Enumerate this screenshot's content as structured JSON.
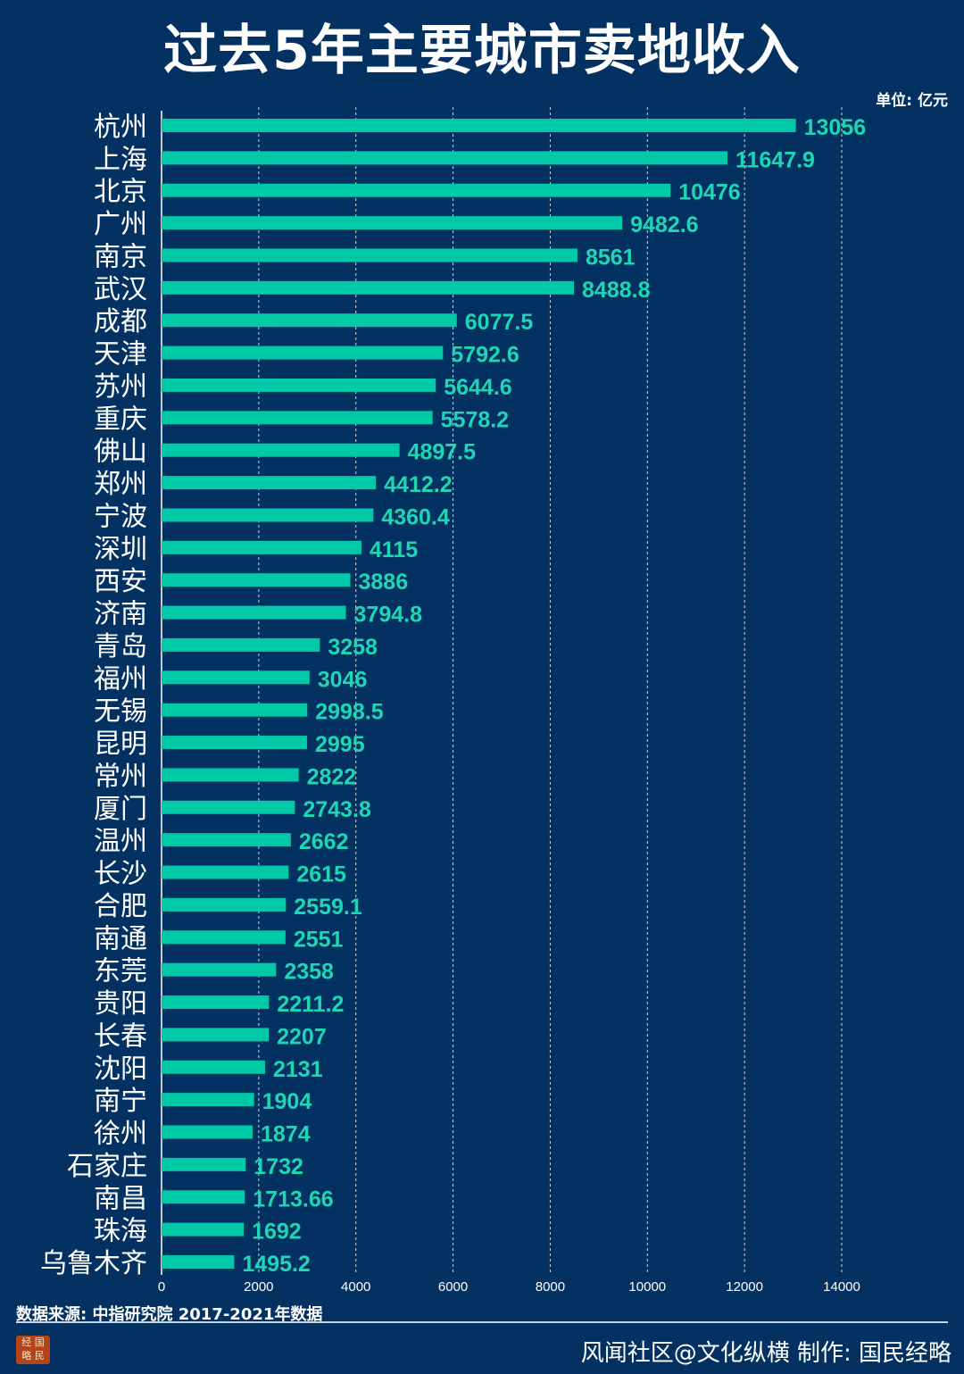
{
  "title": "过去5年主要城市卖地收入",
  "unit": "单位: 亿元",
  "source": "数据来源: 中指研究院  2017-2021年数据",
  "footer": "风闻社区@文化纵横 制作: 国民经略",
  "logo_text": "经国略民",
  "colors": {
    "background": "#033262",
    "bar": "#00c9a7",
    "label": "#1fd6b4"
  },
  "chart_data": {
    "type": "bar",
    "orientation": "horizontal",
    "title": "过去5年主要城市卖地收入",
    "xlabel": "",
    "ylabel": "",
    "unit": "亿元",
    "xlim": [
      0,
      14000
    ],
    "xticks": [
      0,
      2000,
      4000,
      6000,
      8000,
      10000,
      12000,
      14000
    ],
    "grid": "vertical dashed",
    "categories": [
      "杭州",
      "上海",
      "北京",
      "广州",
      "南京",
      "武汉",
      "成都",
      "天津",
      "苏州",
      "重庆",
      "佛山",
      "郑州",
      "宁波",
      "深圳",
      "西安",
      "济南",
      "青岛",
      "福州",
      "无锡",
      "昆明",
      "常州",
      "厦门",
      "温州",
      "长沙",
      "合肥",
      "南通",
      "东莞",
      "贵阳",
      "长春",
      "沈阳",
      "南宁",
      "徐州",
      "石家庄",
      "南昌",
      "珠海",
      "乌鲁木齐"
    ],
    "values": [
      13056,
      11647.9,
      10476,
      9482.6,
      8561,
      8488.8,
      6077.5,
      5792.6,
      5644.6,
      5578.2,
      4897.5,
      4412.2,
      4360.4,
      4115,
      3886,
      3794.8,
      3258,
      3046,
      2998.5,
      2995,
      2822,
      2743.8,
      2662,
      2615,
      2559.1,
      2551,
      2358,
      2211.2,
      2207,
      2131,
      1904,
      1874,
      1732,
      1713.66,
      1692,
      1495.2
    ]
  }
}
